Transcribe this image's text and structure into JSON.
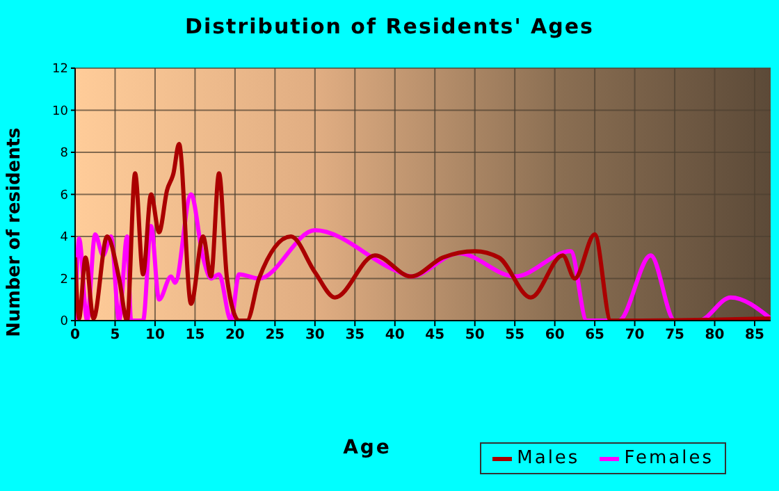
{
  "chart_data": {
    "type": "line",
    "title": "Distribution of Residents' Ages",
    "xlabel": "Age",
    "ylabel": "Number of residents",
    "xlim": [
      0,
      87
    ],
    "xticks": [
      0,
      5,
      10,
      15,
      20,
      25,
      30,
      35,
      40,
      45,
      50,
      55,
      60,
      65,
      70,
      75,
      80,
      85
    ],
    "ylim": [
      0,
      12
    ],
    "yticks": [
      0,
      2,
      4,
      6,
      8,
      10,
      12
    ],
    "grid": true,
    "legend": "bottom right",
    "marker": "none",
    "line_style": "solid",
    "series": [
      {
        "name": "Males",
        "color": "#aa0000",
        "x": [
          0,
          0.5,
          1.3,
          2.3,
          4,
          5.5,
          6.5,
          7.5,
          8.5,
          9.5,
          10.5,
          11.5,
          12.3,
          13,
          14.5,
          16,
          17,
          18,
          19,
          20.5,
          21.5,
          23,
          27,
          30,
          32.5,
          37.5,
          42,
          46,
          50,
          53,
          57,
          61,
          62.5,
          65,
          67,
          70,
          87
        ],
        "values": [
          3,
          0.1,
          3,
          0.1,
          4,
          2,
          0,
          7,
          2.2,
          6,
          4.2,
          6.2,
          7,
          8.4,
          0.8,
          4,
          2.1,
          7,
          2,
          0,
          0,
          2,
          4,
          2.3,
          1.1,
          3.1,
          2.1,
          3,
          3.3,
          3,
          1.1,
          3.1,
          2,
          4.1,
          0,
          0,
          0.1
        ]
      },
      {
        "name": "Females",
        "color": "#ff00ff",
        "x": [
          0,
          0.5,
          1.5,
          2.5,
          3.5,
          4.5,
          5.5,
          6.5,
          7,
          8.5,
          9.5,
          10.5,
          12,
          12.5,
          14.5,
          16,
          17,
          18,
          19.5,
          20.5,
          23,
          30,
          40,
          42,
          48,
          55,
          62,
          64,
          68,
          72,
          75,
          78,
          82,
          87
        ],
        "values": [
          0,
          3.9,
          0,
          4.1,
          3.1,
          4,
          0,
          4,
          0,
          0,
          4.5,
          1,
          2.1,
          1.8,
          6,
          3,
          2,
          2.2,
          0,
          2.2,
          2,
          4.3,
          2.4,
          2.1,
          3.2,
          2.1,
          3.3,
          0,
          0,
          3.1,
          0,
          0,
          1.1,
          0.1
        ]
      }
    ]
  }
}
